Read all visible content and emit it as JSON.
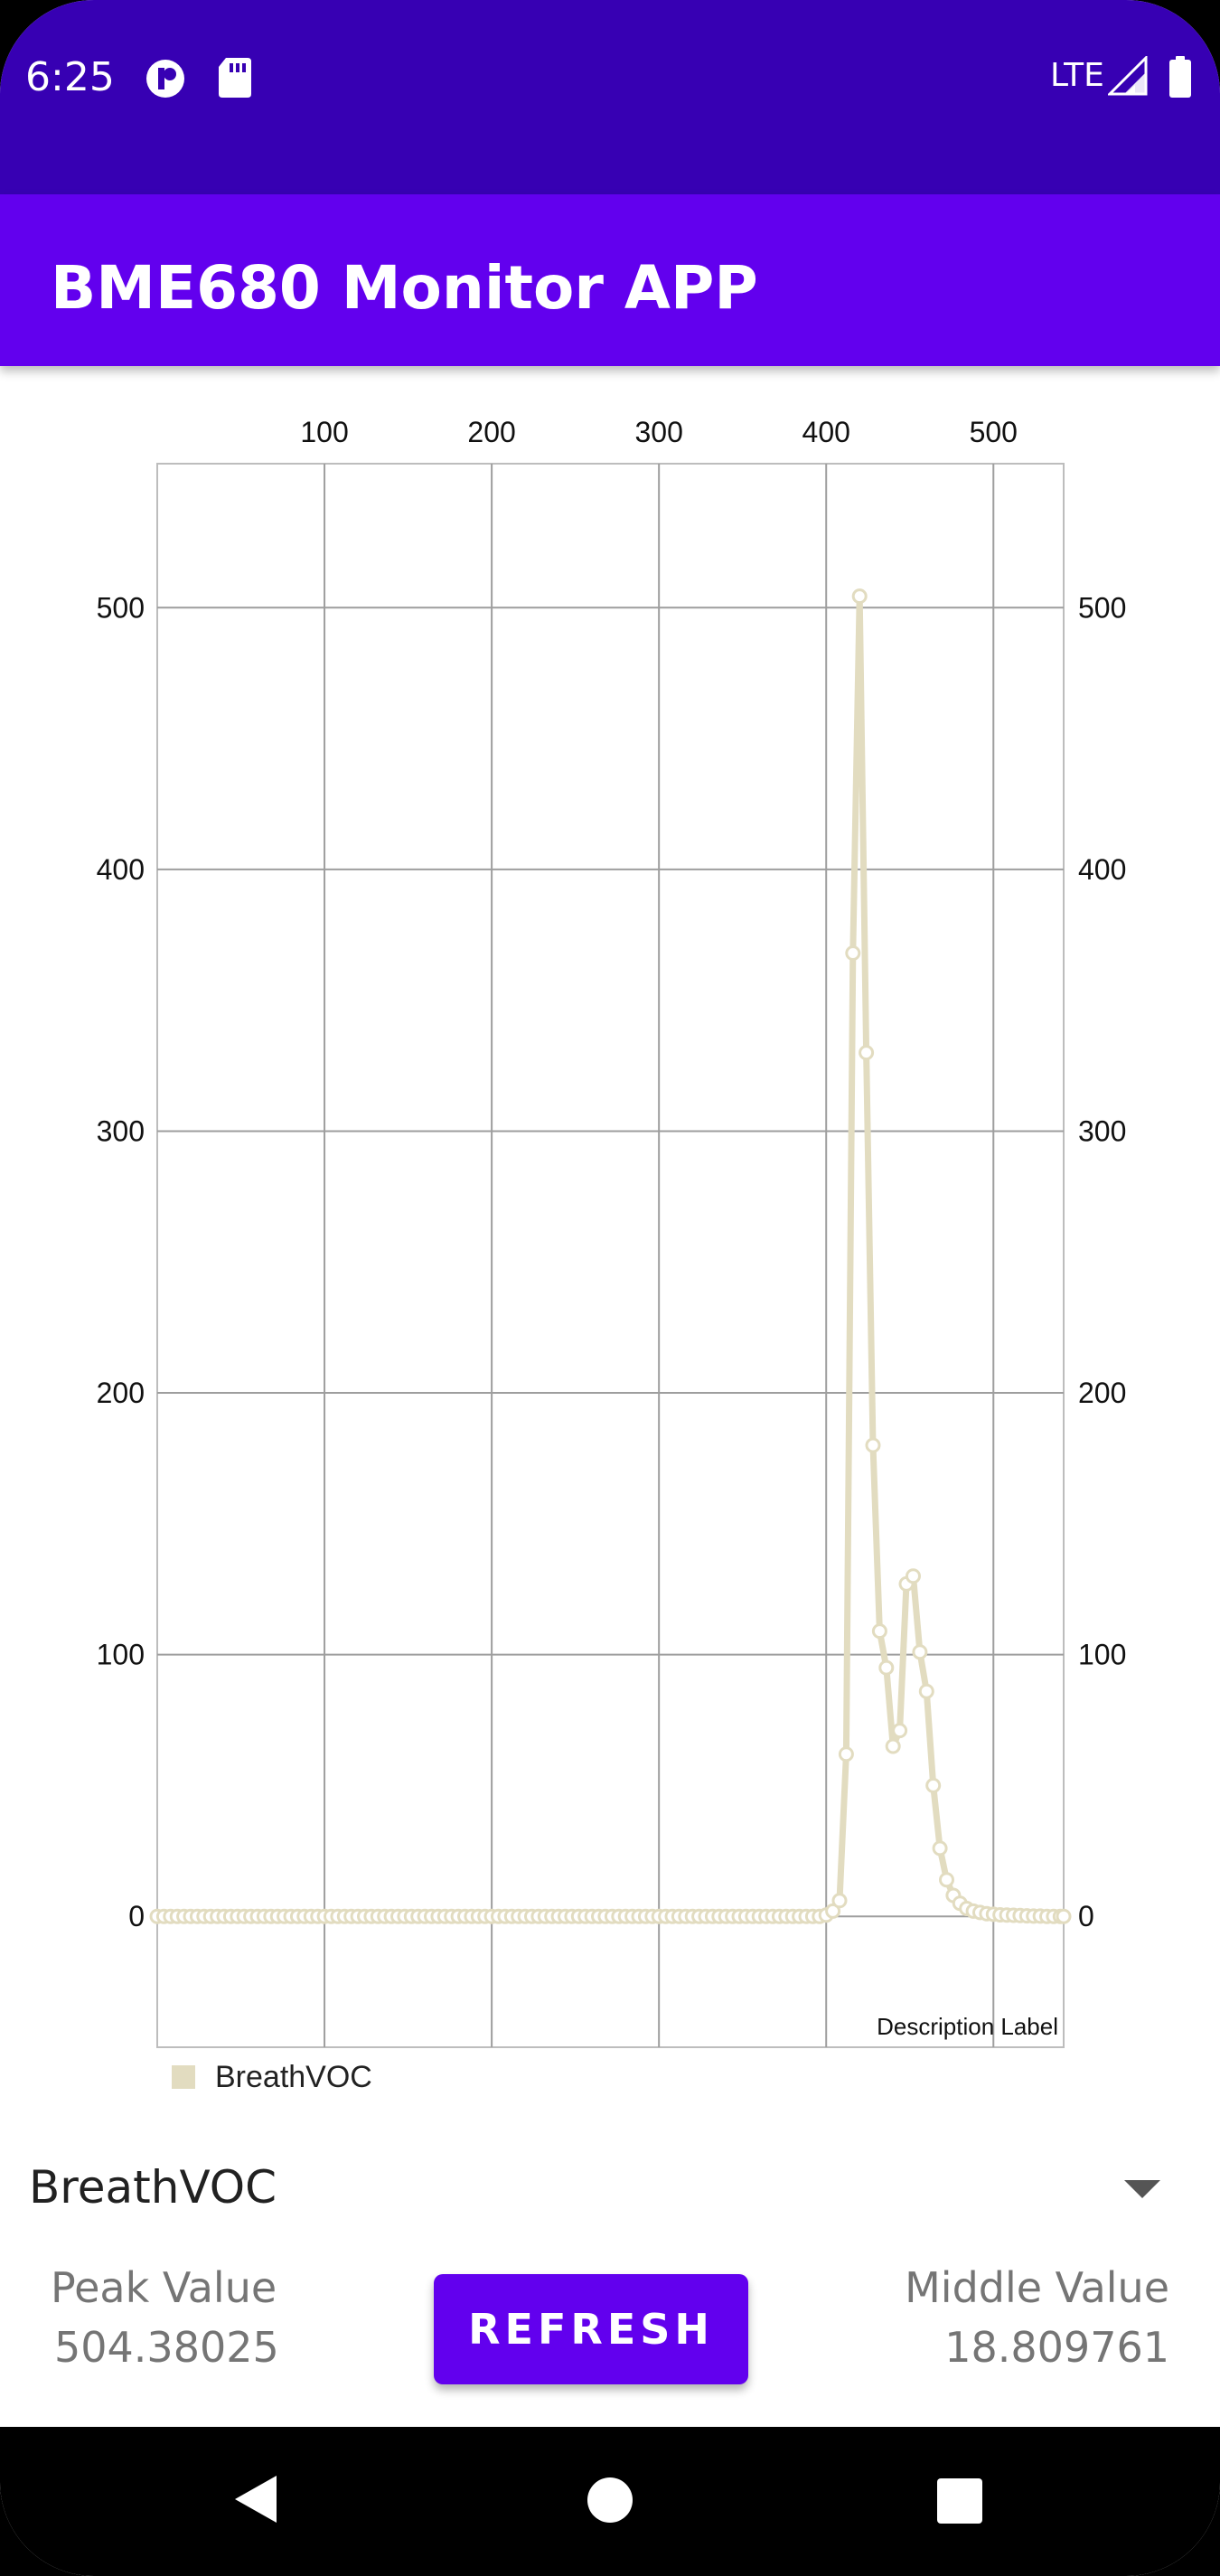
{
  "status_bar": {
    "time": "6:25",
    "network": "LTE",
    "icons": [
      "notification-icon",
      "sd-card-icon",
      "signal-icon",
      "battery-icon"
    ]
  },
  "app_bar": {
    "title": "BME680 Monitor APP"
  },
  "chart_data": {
    "type": "line",
    "x_axis": {
      "position": "top",
      "min": 0,
      "max": 542,
      "ticks": [
        100,
        200,
        300,
        400,
        500
      ]
    },
    "y_axis": {
      "min": -50,
      "max": 555,
      "ticks": [
        0,
        100,
        200,
        300,
        400,
        500
      ],
      "sides": [
        "left",
        "right"
      ]
    },
    "grid": true,
    "description": "Description Label",
    "legend_position": "bottom-left",
    "series": [
      {
        "name": "BreathVOC",
        "color": "#E2DCC0",
        "points": [
          [
            0,
            0
          ],
          [
            4,
            0
          ],
          [
            8,
            0
          ],
          [
            12,
            0
          ],
          [
            16,
            0
          ],
          [
            20,
            0
          ],
          [
            24,
            0
          ],
          [
            28,
            0
          ],
          [
            32,
            0
          ],
          [
            36,
            0
          ],
          [
            40,
            0
          ],
          [
            44,
            0
          ],
          [
            48,
            0
          ],
          [
            52,
            0
          ],
          [
            56,
            0
          ],
          [
            60,
            0
          ],
          [
            64,
            0
          ],
          [
            68,
            0
          ],
          [
            72,
            0
          ],
          [
            76,
            0
          ],
          [
            80,
            0
          ],
          [
            84,
            0
          ],
          [
            88,
            0
          ],
          [
            92,
            0
          ],
          [
            96,
            0
          ],
          [
            100,
            0
          ],
          [
            104,
            0
          ],
          [
            108,
            0
          ],
          [
            112,
            0
          ],
          [
            116,
            0
          ],
          [
            120,
            0
          ],
          [
            124,
            0
          ],
          [
            128,
            0
          ],
          [
            132,
            0
          ],
          [
            136,
            0
          ],
          [
            140,
            0
          ],
          [
            144,
            0
          ],
          [
            148,
            0
          ],
          [
            152,
            0
          ],
          [
            156,
            0
          ],
          [
            160,
            0
          ],
          [
            164,
            0
          ],
          [
            168,
            0
          ],
          [
            172,
            0
          ],
          [
            176,
            0
          ],
          [
            180,
            0
          ],
          [
            184,
            0
          ],
          [
            188,
            0
          ],
          [
            192,
            0
          ],
          [
            196,
            0
          ],
          [
            200,
            0
          ],
          [
            204,
            0
          ],
          [
            208,
            0
          ],
          [
            212,
            0
          ],
          [
            216,
            0
          ],
          [
            220,
            0
          ],
          [
            224,
            0
          ],
          [
            228,
            0
          ],
          [
            232,
            0
          ],
          [
            236,
            0
          ],
          [
            240,
            0
          ],
          [
            244,
            0
          ],
          [
            248,
            0
          ],
          [
            252,
            0
          ],
          [
            256,
            0
          ],
          [
            260,
            0
          ],
          [
            264,
            0
          ],
          [
            268,
            0
          ],
          [
            272,
            0
          ],
          [
            276,
            0
          ],
          [
            280,
            0
          ],
          [
            284,
            0
          ],
          [
            288,
            0
          ],
          [
            292,
            0
          ],
          [
            296,
            0
          ],
          [
            300,
            0
          ],
          [
            304,
            0
          ],
          [
            308,
            0
          ],
          [
            312,
            0
          ],
          [
            316,
            0
          ],
          [
            320,
            0
          ],
          [
            324,
            0
          ],
          [
            328,
            0
          ],
          [
            332,
            0
          ],
          [
            336,
            0
          ],
          [
            340,
            0
          ],
          [
            344,
            0
          ],
          [
            348,
            0
          ],
          [
            352,
            0
          ],
          [
            356,
            0
          ],
          [
            360,
            0
          ],
          [
            364,
            0
          ],
          [
            368,
            0
          ],
          [
            372,
            0
          ],
          [
            376,
            0
          ],
          [
            380,
            0
          ],
          [
            384,
            0
          ],
          [
            388,
            0
          ],
          [
            392,
            0
          ],
          [
            396,
            0
          ],
          [
            400,
            0.5
          ],
          [
            404,
            2
          ],
          [
            408,
            6
          ],
          [
            412,
            62
          ],
          [
            416,
            368
          ],
          [
            420,
            504.38
          ],
          [
            424,
            330
          ],
          [
            428,
            180
          ],
          [
            432,
            109
          ],
          [
            436,
            95
          ],
          [
            440,
            65
          ],
          [
            444,
            71
          ],
          [
            448,
            127
          ],
          [
            452,
            130
          ],
          [
            456,
            101
          ],
          [
            460,
            86
          ],
          [
            464,
            50
          ],
          [
            468,
            26
          ],
          [
            472,
            14
          ],
          [
            476,
            8
          ],
          [
            480,
            5
          ],
          [
            484,
            3
          ],
          [
            488,
            2
          ],
          [
            492,
            1.5
          ],
          [
            496,
            1
          ],
          [
            500,
            0.8
          ],
          [
            504,
            0.6
          ],
          [
            508,
            0.5
          ],
          [
            512,
            0.4
          ],
          [
            516,
            0.3
          ],
          [
            520,
            0.2
          ],
          [
            524,
            0.1
          ],
          [
            528,
            0.1
          ],
          [
            532,
            0
          ],
          [
            536,
            0
          ],
          [
            540,
            0
          ],
          [
            542,
            0
          ]
        ]
      }
    ]
  },
  "spinner": {
    "selected": "BreathVOC"
  },
  "stats": {
    "peak_label": "Peak Value",
    "peak_value": "504.38025",
    "middle_label": "Middle Value",
    "middle_value": "18.809761"
  },
  "refresh_button": {
    "label": "REFRESH"
  },
  "nav_bar": {
    "icons": [
      "back-icon",
      "home-icon",
      "recents-icon"
    ]
  }
}
